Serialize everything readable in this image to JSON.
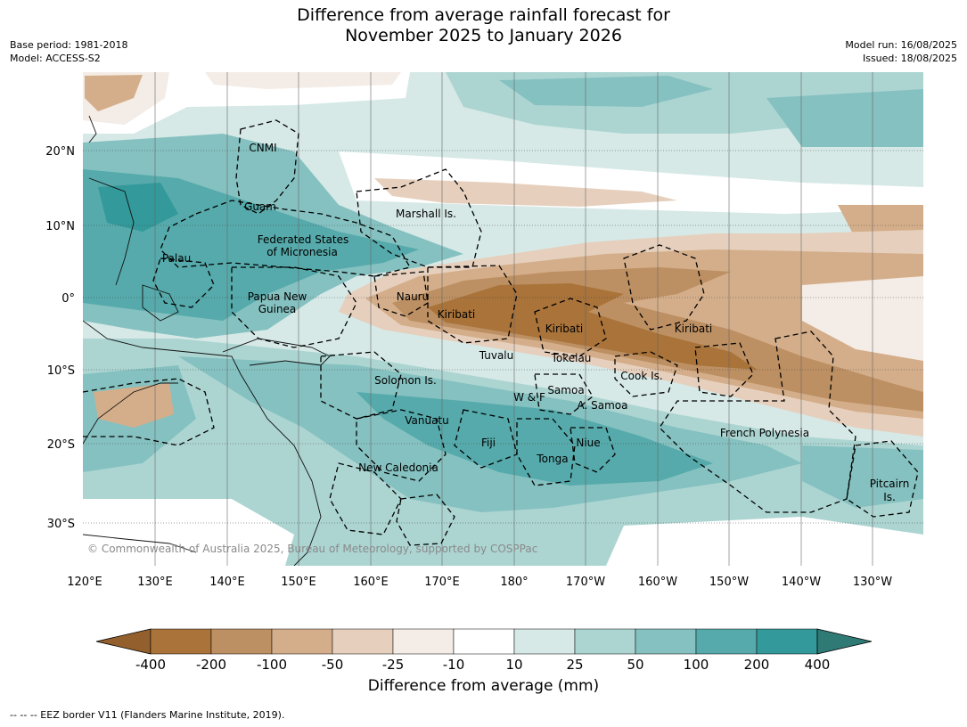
{
  "title_line1": "Difference from average rainfall forecast for",
  "title_line2": "November 2025 to January 2026",
  "base_period": "Base period: 1981-2018",
  "model": "Model: ACCESS-S2",
  "model_run": "Model run: 16/08/2025",
  "issued": "Issued: 18/08/2025",
  "copyright": "© Commonwealth of Australia 2025, Bureau of Meteorology, supported by COSPPac",
  "footnote": "--  --  -- EEZ border V11 (Flanders Marine Institute, 2019).",
  "lat_labels": [
    "20°N",
    "10°N",
    "0°",
    "10°S",
    "20°S",
    "30°S"
  ],
  "lon_labels": [
    "120°E",
    "130°E",
    "140°E",
    "150°E",
    "160°E",
    "170°E",
    "180°",
    "170°W",
    "160°W",
    "150°W",
    "140°W",
    "130°W"
  ],
  "places": [
    "CNMI",
    "Guam",
    "Marshall Is.",
    "Federated States",
    "of Micronesia",
    "Palau",
    "Papua New",
    "Guinea",
    "Nauru",
    "Kiribati",
    "Kiribati",
    "Kiribati",
    "Tuvalu",
    "Tokelau",
    "Cook Is.",
    "Solomon Is.",
    "W & F",
    "Samoa",
    "A. Samoa",
    "Vanuatu",
    "Fiji",
    "Niue",
    "Tonga",
    "French Polynesia",
    "New Caledonia",
    "Pitcairn",
    "Is."
  ],
  "colorbar": {
    "label": "Difference from average (mm)",
    "ticks": [
      "-400",
      "-200",
      "-100",
      "-50",
      "-25",
      "-10",
      "10",
      "25",
      "50",
      "100",
      "200",
      "400"
    ],
    "colors": [
      "#935f2c",
      "#a9733a",
      "#bd9063",
      "#d4ae8a",
      "#e6d0bd",
      "#f4ece6",
      "#ffffff",
      "#d6e9e7",
      "#acd5d2",
      "#85c1c0",
      "#56aaab",
      "#33999a",
      "#2f7a75"
    ]
  }
}
